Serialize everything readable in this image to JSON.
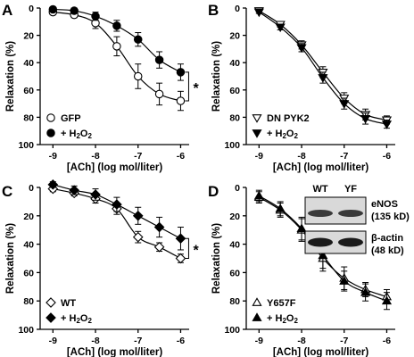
{
  "chart_data": [
    {
      "panel": "A",
      "type": "line",
      "xlabel": "[ACh] (log mol/liter)",
      "ylabel": "Relaxation (%)",
      "xlim": [
        -9.3,
        -5.8
      ],
      "ylim": [
        0,
        100
      ],
      "y_inverted": true,
      "xticks": [
        -9,
        -8,
        -7,
        -6
      ],
      "yticks": [
        0,
        20,
        40,
        60,
        80,
        100
      ],
      "legend_position": "bottom-left",
      "significance": "*",
      "series": [
        {
          "name": "GFP",
          "marker": "circle-open",
          "x": [
            -9,
            -8.5,
            -8,
            -7.5,
            -7,
            -6.5,
            -6
          ],
          "y": [
            3,
            5,
            11,
            28,
            50,
            63,
            68
          ],
          "err": [
            1,
            2,
            4,
            7,
            9,
            8,
            7
          ]
        },
        {
          "name": "+ H2O2",
          "marker": "circle-filled",
          "x": [
            -9,
            -8.5,
            -8,
            -7.5,
            -7,
            -6.5,
            -6
          ],
          "y": [
            1,
            2,
            6,
            13,
            23,
            38,
            47
          ],
          "err": [
            1,
            2,
            3,
            4,
            5,
            6,
            6
          ]
        }
      ]
    },
    {
      "panel": "B",
      "type": "line",
      "xlabel": "[ACh] (log mol/liter)",
      "ylabel": "Relaxation (%)",
      "xlim": [
        -9.3,
        -5.8
      ],
      "ylim": [
        0,
        100
      ],
      "y_inverted": true,
      "xticks": [
        -9,
        -8,
        -7,
        -6
      ],
      "yticks": [
        0,
        20,
        40,
        60,
        80,
        100
      ],
      "legend_position": "bottom-left",
      "series": [
        {
          "name": "DN PYK2",
          "marker": "triangle-down-open",
          "x": [
            -9,
            -8.5,
            -8,
            -7.5,
            -7,
            -6.5,
            -6
          ],
          "y": [
            2,
            12,
            27,
            47,
            66,
            78,
            82
          ],
          "err": [
            1,
            2,
            3,
            4,
            4,
            4,
            3
          ]
        },
        {
          "name": "+ H2O2",
          "marker": "triangle-down-filled",
          "x": [
            -9,
            -8.5,
            -8,
            -7.5,
            -7,
            -6.5,
            -6
          ],
          "y": [
            3,
            14,
            29,
            51,
            70,
            81,
            85
          ],
          "err": [
            1,
            2,
            3,
            4,
            4,
            4,
            3
          ]
        }
      ]
    },
    {
      "panel": "C",
      "type": "line",
      "xlabel": "[ACh] (log mol/liter)",
      "ylabel": "Relaxation (%)",
      "xlim": [
        -9.3,
        -5.8
      ],
      "ylim": [
        0,
        100
      ],
      "y_inverted": true,
      "xticks": [
        -9,
        -8,
        -7,
        -6
      ],
      "yticks": [
        0,
        20,
        40,
        60,
        80,
        100
      ],
      "legend_position": "bottom-left",
      "significance": "*",
      "series": [
        {
          "name": "WT",
          "marker": "diamond-open",
          "x": [
            -9,
            -8.5,
            -8,
            -7.5,
            -7,
            -6.5,
            -6
          ],
          "y": [
            1,
            4,
            8,
            15,
            35,
            42,
            50
          ],
          "err": [
            2,
            2,
            3,
            4,
            4,
            3,
            3
          ]
        },
        {
          "name": "+ H2O2",
          "marker": "diamond-filled",
          "x": [
            -9,
            -8.5,
            -8,
            -7.5,
            -7,
            -6.5,
            -6
          ],
          "y": [
            -2,
            2,
            5,
            12,
            20,
            28,
            36
          ],
          "err": [
            2,
            3,
            4,
            5,
            6,
            7,
            8
          ]
        }
      ]
    },
    {
      "panel": "D",
      "type": "line",
      "xlabel": "[ACh] (log mol/liter)",
      "ylabel": "Relaxation (%)",
      "xlim": [
        -9.3,
        -5.8
      ],
      "ylim": [
        0,
        100
      ],
      "y_inverted": true,
      "xticks": [
        -9,
        -8,
        -7,
        -6
      ],
      "yticks": [
        0,
        20,
        40,
        60,
        80,
        100
      ],
      "legend_position": "bottom-left",
      "series": [
        {
          "name": "Y657F",
          "marker": "triangle-up-open",
          "x": [
            -9,
            -8.5,
            -8,
            -7.5,
            -7,
            -6.5,
            -6
          ],
          "y": [
            7,
            16,
            30,
            50,
            64,
            72,
            77
          ],
          "err": [
            4,
            5,
            8,
            9,
            8,
            5,
            5
          ]
        },
        {
          "name": "+ H2O2",
          "marker": "triangle-up-filled",
          "x": [
            -9,
            -8.5,
            -8,
            -7.5,
            -7,
            -6.5,
            -6
          ],
          "y": [
            6,
            15,
            29,
            48,
            66,
            74,
            80
          ],
          "err": [
            4,
            5,
            8,
            9,
            7,
            6,
            6
          ]
        }
      ]
    }
  ],
  "blot": {
    "lanes": [
      "WT",
      "YF"
    ],
    "bands": [
      {
        "name": "eNOS",
        "size": "(135 kD)"
      },
      {
        "name": "β-actin",
        "size": "(48 kD)"
      }
    ]
  },
  "colors": {
    "ink": "#000000",
    "background": "#ffffff"
  }
}
